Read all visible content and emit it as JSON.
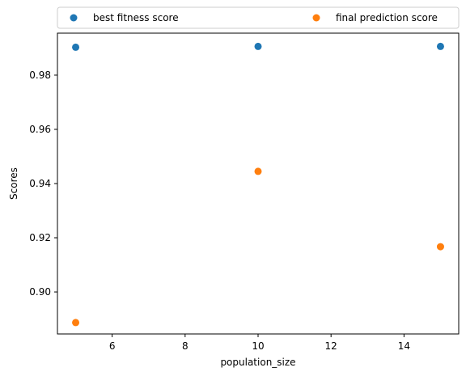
{
  "chart_data": {
    "type": "scatter",
    "title": "",
    "xlabel": "population_size",
    "ylabel": "Scores",
    "xlim": [
      4.5,
      15.5
    ],
    "ylim": [
      0.8845,
      0.9955
    ],
    "xticks": [
      6,
      8,
      10,
      12,
      14
    ],
    "xtick_labels": [
      "6",
      "8",
      "10",
      "12",
      "14"
    ],
    "yticks": [
      0.9,
      0.92,
      0.94,
      0.96,
      0.98
    ],
    "ytick_labels": [
      "0.90",
      "0.92",
      "0.94",
      "0.96",
      "0.98"
    ],
    "grid": false,
    "legend": {
      "placement": "above plot, spanning width",
      "columns": 2
    },
    "series": [
      {
        "name": "best fitness score",
        "color": "#1f77b4",
        "x": [
          5,
          10,
          15
        ],
        "y": [
          0.9903,
          0.9906,
          0.9906
        ]
      },
      {
        "name": "final prediction score",
        "color": "#ff7f0e",
        "x": [
          5,
          10,
          15
        ],
        "y": [
          0.8887,
          0.9445,
          0.9167
        ]
      }
    ]
  }
}
